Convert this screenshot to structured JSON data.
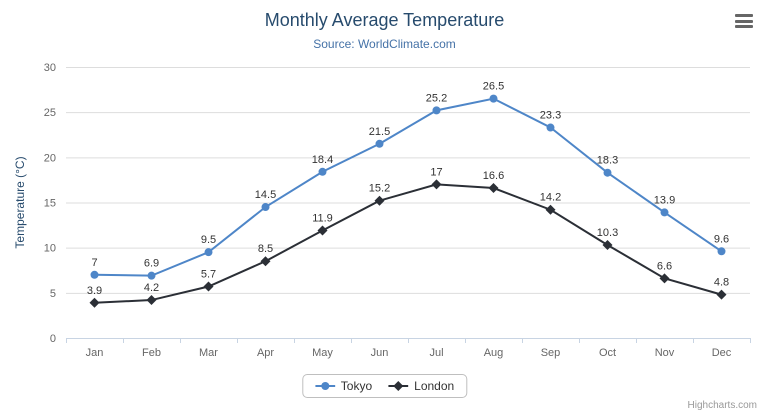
{
  "header": {
    "menu_icon": "hamburger-icon"
  },
  "credit": "Highcharts.com",
  "styles": {
    "title_color": "#274b6d",
    "subtitle_color": "#4572a7",
    "axis_title_color": "#274b6d",
    "tick_label_color": "#666666",
    "gridline_color": "#dddddd",
    "axis_line_color": "#c8d4e3",
    "data_label_color": "#333333",
    "legend_text_color": "#333333",
    "legend_border_color": "#bfbfbf",
    "credit_color": "#999999"
  },
  "chart_data": {
    "type": "line",
    "title": "Monthly Average Temperature",
    "subtitle": "Source: WorldClimate.com",
    "xlabel": "",
    "ylabel": "Temperature (°C)",
    "ylim": [
      0,
      30
    ],
    "ytick_interval": 5,
    "grid": true,
    "legend_position": "bottom",
    "data_labels": true,
    "categories": [
      "Jan",
      "Feb",
      "Mar",
      "Apr",
      "May",
      "Jun",
      "Jul",
      "Aug",
      "Sep",
      "Oct",
      "Nov",
      "Dec"
    ],
    "series": [
      {
        "name": "Tokyo",
        "color": "#4e86c8",
        "marker": "circle",
        "values": [
          7,
          6.9,
          9.5,
          14.5,
          18.4,
          21.5,
          25.2,
          26.5,
          23.3,
          18.3,
          13.9,
          9.6
        ]
      },
      {
        "name": "London",
        "color": "#2b2f36",
        "marker": "diamond",
        "values": [
          3.9,
          4.2,
          5.7,
          8.5,
          11.9,
          15.2,
          17,
          16.6,
          14.2,
          10.3,
          6.6,
          4.8
        ]
      }
    ]
  }
}
